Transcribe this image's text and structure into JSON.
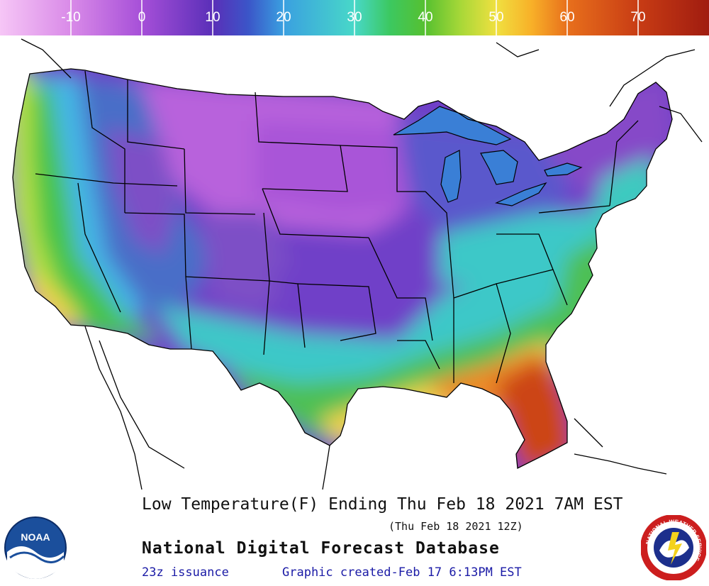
{
  "colorbar": {
    "ticks": [
      "-10",
      "0",
      "10",
      "20",
      "30",
      "40",
      "50",
      "60",
      "70"
    ],
    "stops": [
      {
        "temp": -20,
        "color": "#f6c6f6"
      },
      {
        "temp": -10,
        "color": "#d98ae8"
      },
      {
        "temp": 0,
        "color": "#a64fd8"
      },
      {
        "temp": 10,
        "color": "#5a2fb8"
      },
      {
        "temp": 15,
        "color": "#3b55c8"
      },
      {
        "temp": 20,
        "color": "#3aa0e0"
      },
      {
        "temp": 30,
        "color": "#48d8c8"
      },
      {
        "temp": 35,
        "color": "#3cc860"
      },
      {
        "temp": 40,
        "color": "#56c030"
      },
      {
        "temp": 45,
        "color": "#a8d838"
      },
      {
        "temp": 50,
        "color": "#f0e040"
      },
      {
        "temp": 55,
        "color": "#f8b028"
      },
      {
        "temp": 60,
        "color": "#e8701c"
      },
      {
        "temp": 70,
        "color": "#c83c14"
      },
      {
        "temp": 80,
        "color": "#a01c10"
      }
    ]
  },
  "caption": {
    "title": "Low Temperature(F) Ending Thu Feb 18 2021  7AM EST",
    "subtitle": "(Thu Feb 18 2021 12Z)",
    "product": "National Digital Forecast Database",
    "issuance": "23z issuance",
    "created": "Graphic created-Feb 17  6:13PM EST"
  },
  "logos": {
    "noaa": "NOAA",
    "nws_ring": "NATIONAL WEATHER SERVICE"
  },
  "map_colors": {
    "land_outside": "#ffffff",
    "border": "#000000",
    "lakes": "#3a7fd6",
    "pacific_coast": "#b8e040",
    "west_green": "#46c44a",
    "west_cyan": "#45b6e6",
    "rockies_blue": "#4a6ec8",
    "rockies_violet": "#7d4fc6",
    "plains_purple": "#a955d8",
    "north_magenta": "#b862dc",
    "central_violet": "#7040c8",
    "east_blue": "#5a58cc",
    "southern_teal": "#3cc8c8",
    "gulf_green": "#4ec054",
    "gulf_yellow": "#f0d24a",
    "gulf_orange": "#ec8a28",
    "florida_red": "#cc4418",
    "east_coast_teal": "#3ccac0",
    "northeast_violet": "#8648c8"
  }
}
